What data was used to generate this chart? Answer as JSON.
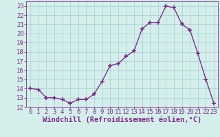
{
  "x": [
    0,
    1,
    2,
    3,
    4,
    5,
    6,
    7,
    8,
    9,
    10,
    11,
    12,
    13,
    14,
    15,
    16,
    17,
    18,
    19,
    20,
    21,
    22,
    23
  ],
  "y": [
    14.0,
    13.9,
    13.0,
    13.0,
    12.8,
    12.4,
    12.8,
    12.8,
    13.4,
    14.8,
    16.5,
    16.7,
    17.5,
    18.1,
    20.5,
    21.2,
    21.2,
    23.0,
    22.8,
    21.0,
    20.4,
    17.8,
    15.0,
    12.4
  ],
  "line_color": "#7b2d8b",
  "marker": "+",
  "marker_size": 4,
  "marker_linewidth": 1.2,
  "linewidth": 1.0,
  "xlabel": "Windchill (Refroidissement éolien,°C)",
  "xlim": [
    -0.5,
    23.5
  ],
  "ylim": [
    12,
    23.5
  ],
  "yticks": [
    12,
    13,
    14,
    15,
    16,
    17,
    18,
    19,
    20,
    21,
    22,
    23
  ],
  "xticks": [
    0,
    1,
    2,
    3,
    4,
    5,
    6,
    7,
    8,
    9,
    10,
    11,
    12,
    13,
    14,
    15,
    16,
    17,
    18,
    19,
    20,
    21,
    22,
    23
  ],
  "bg_color": "#d4eeec",
  "grid_color": "#aad4d0",
  "line_label_color": "#7b2d8b",
  "xlabel_fontsize": 7.5,
  "tick_fontsize": 6.5
}
